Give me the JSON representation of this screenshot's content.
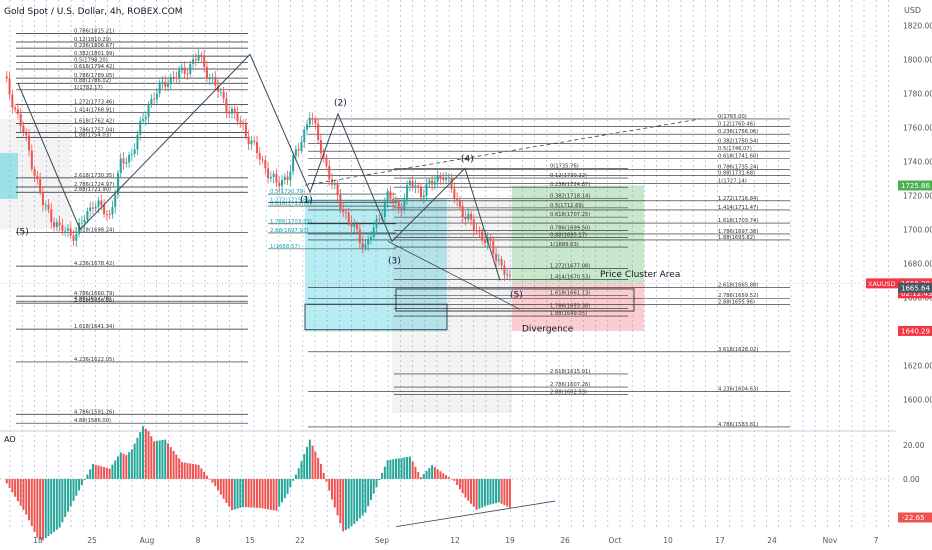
{
  "symbol_title": "Gold Spot / U.S. Dollar, 4h, ROBEX.COM",
  "currency": "USD",
  "chart_data": [
    {
      "type": "candlestick",
      "title": "Gold Spot / U.S. Dollar, 4h, ROBEX.COM",
      "ylim": [
        1582,
        1835
      ],
      "price_ticks": [
        1600.0,
        1620.0,
        1640.0,
        1660.0,
        1680.0,
        1700.0,
        1720.0,
        1740.0,
        1760.0,
        1780.0,
        1800.0,
        1820.0
      ],
      "time_labels": [
        "18",
        "25",
        "Aug",
        "8",
        "15",
        "22",
        "Sep",
        "12",
        "19",
        "26",
        "Oct",
        "10",
        "17",
        "24",
        "Nov",
        "7"
      ],
      "price_path": [
        [
          0,
          1790
        ],
        [
          8,
          1752
        ],
        [
          14,
          1715
        ],
        [
          20,
          1700
        ],
        [
          26,
          1697
        ],
        [
          32,
          1716
        ],
        [
          38,
          1708
        ],
        [
          42,
          1738
        ],
        [
          46,
          1745
        ],
        [
          52,
          1774
        ],
        [
          58,
          1787
        ],
        [
          64,
          1792
        ],
        [
          70,
          1802
        ],
        [
          74,
          1790
        ],
        [
          80,
          1773
        ],
        [
          86,
          1760
        ],
        [
          92,
          1742
        ],
        [
          98,
          1726
        ],
        [
          102,
          1732
        ],
        [
          106,
          1748
        ],
        [
          110,
          1768
        ],
        [
          114,
          1748
        ],
        [
          118,
          1726
        ],
        [
          124,
          1705
        ],
        [
          130,
          1690
        ],
        [
          134,
          1703
        ],
        [
          138,
          1720
        ],
        [
          142,
          1712
        ],
        [
          146,
          1727
        ],
        [
          150,
          1722
        ],
        [
          154,
          1727
        ],
        [
          158,
          1733
        ],
        [
          162,
          1720
        ],
        [
          166,
          1707
        ],
        [
          170,
          1700
        ],
        [
          174,
          1692
        ],
        [
          178,
          1682
        ],
        [
          182,
          1669
        ]
      ],
      "wave_labels": [
        "(5)",
        "(1)",
        "(2)",
        "(3)",
        "(4)",
        "(5)"
      ],
      "annotations": [
        "Price Cluster Area",
        "Divergence"
      ],
      "fib_labels_left": [
        "0.786(1815.21)",
        "0.12(1810.29)",
        "0.236(1806.67)",
        "0.382(1801.99)",
        "0.5(1798.20)",
        "0.618(1794.42)",
        "0.786(1789.05)",
        "0.88(1786.02)",
        "1(1782.17)",
        "1.272(1773.46)",
        "1.414(1768.91)",
        "1.618(1762.42)",
        "1.786(1757.04)",
        "1.88(1754.03)",
        "2.618(1730.35)",
        "2.786(1724.97)",
        "2.88(1721.90)",
        "3.618(1698.24)",
        "4.236(1678.42)",
        "4.786(1660.79)",
        "4.88(1657.78)",
        "2.618(1656.65)",
        "1.618(1641.34)",
        "4.236(1622.05)",
        "4.786(1591.26)",
        "4.88(1586.00)"
      ],
      "fib_labels_mid": [
        "0.5(1720.79)",
        "0.618(1713.77)",
        "1(1688.57)",
        "1.272(1715.80)",
        "1.786(1703.33)",
        "2.88(1697.97)"
      ],
      "fib_labels_right": [
        "0(1765.00)",
        "0.12(1760.46)",
        "0.236(1756.06)",
        "0.382(1750.54)",
        "0.5(1746.07)",
        "0.618(1741.60)",
        "0.786(1735.24)",
        "0.88(1731.68)",
        "1(1727.14)",
        "1.272(1716.84)",
        "1.414(1711.47)",
        "1.618(1703.74)",
        "1.786(1697.38)",
        "1.88(1693.82)",
        "2.618(1665.88)",
        "2.786(1659.52)",
        "2.88(1655.96)",
        "3.618(1628.02)",
        "4.236(1604.63)",
        "4.786(1583.81)"
      ],
      "fib_labels_inner": [
        "0(1735.76)",
        "0.12(1730.22)",
        "0.236(1724.87)",
        "0.382(1718.14)",
        "0.5(1712.69)",
        "0.618(1707.25)",
        "0.786(1699.50)",
        "0.88(1695.17)",
        "1(1689.63)",
        "1.272(1677.08)",
        "1.414(1670.53)",
        "1.618(1661.13)",
        "1.786(1653.38)",
        "1.88(1649.05)",
        "2.618(1615.01)",
        "2.786(1607.26)",
        "2.88(1602.93)"
      ],
      "price_tags": [
        {
          "label": "1725.86",
          "value": 1725.86,
          "color": "#4caf50"
        },
        {
          "label": "XAUUSD",
          "value": 1668.3,
          "color": "#f23645"
        },
        {
          "label": "1668.30",
          "value": 1668.3,
          "color": "#f23645"
        },
        {
          "label": "02:12:43",
          "value": 1668.3,
          "color": "#f23645"
        },
        {
          "label": "1665.64",
          "value": 1665.64,
          "color": "#455a64"
        },
        {
          "label": "1640.29",
          "value": 1640.29,
          "color": "#f23645"
        }
      ],
      "zones": {
        "profit_color": "#4caf50",
        "loss_color": "#f23645",
        "box_color": "#00bcd4"
      }
    },
    {
      "type": "bar",
      "title": "AO",
      "ylim": [
        -30,
        27
      ],
      "y_ticks": [
        20.0,
        0.0
      ],
      "current_label": "-22.65",
      "up_color": "#26a69a",
      "down_color": "#ef5350"
    }
  ]
}
